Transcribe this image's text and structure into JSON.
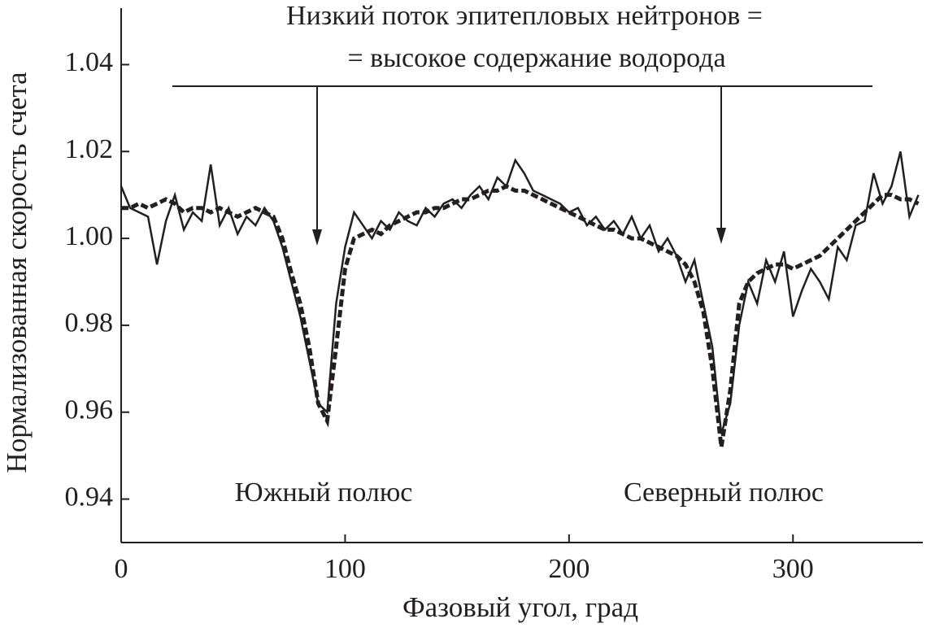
{
  "chart_data": {
    "type": "line",
    "xlabel": "Фазовый угол, град",
    "ylabel": "Нормализованная скорость счета",
    "annotations": [
      "Низкий поток эпитепловых нейтронов =",
      "= высокое содержание водорода",
      "Южный полюс",
      "Северный полюс"
    ],
    "x": [
      0,
      4,
      8,
      12,
      16,
      20,
      24,
      28,
      32,
      36,
      40,
      44,
      48,
      52,
      56,
      60,
      64,
      68,
      72,
      76,
      80,
      84,
      88,
      92,
      96,
      100,
      104,
      108,
      112,
      116,
      120,
      124,
      128,
      132,
      136,
      140,
      144,
      148,
      152,
      156,
      160,
      164,
      168,
      172,
      176,
      180,
      184,
      188,
      192,
      196,
      200,
      204,
      208,
      212,
      216,
      220,
      224,
      228,
      232,
      236,
      240,
      244,
      248,
      252,
      256,
      260,
      264,
      268,
      272,
      276,
      280,
      284,
      288,
      292,
      296,
      300,
      304,
      308,
      312,
      316,
      320,
      324,
      328,
      332,
      336,
      340,
      344,
      348,
      352,
      356
    ],
    "series": [
      {
        "color": "#231f20",
        "dash": false,
        "values": [
          1.012,
          1.007,
          1.006,
          1.005,
          0.994,
          1.004,
          1.01,
          1.002,
          1.006,
          1.004,
          1.017,
          1.003,
          1.007,
          1.001,
          1.005,
          1.003,
          1.007,
          1.004,
          0.998,
          0.99,
          0.982,
          0.972,
          0.962,
          0.96,
          0.985,
          0.998,
          1.006,
          1.003,
          1.0,
          1.004,
          1.002,
          1.006,
          1.004,
          1.003,
          1.007,
          1.005,
          1.008,
          1.009,
          1.007,
          1.01,
          1.012,
          1.009,
          1.014,
          1.012,
          1.018,
          1.015,
          1.011,
          1.01,
          1.009,
          1.008,
          1.006,
          1.007,
          1.003,
          1.005,
          1.002,
          1.004,
          1.001,
          1.005,
          1.0,
          1.003,
          0.997,
          1.0,
          0.996,
          0.99,
          0.995,
          0.985,
          0.975,
          0.955,
          0.962,
          0.98,
          0.99,
          0.985,
          0.995,
          0.99,
          0.997,
          0.982,
          0.988,
          0.993,
          0.99,
          0.986,
          0.998,
          0.995,
          1.003,
          1.004,
          1.015,
          1.008,
          1.012,
          1.02,
          1.005,
          1.01
        ]
      },
      {
        "color": "#231f20",
        "dash": true,
        "values": [
          1.007,
          1.007,
          1.008,
          1.007,
          1.008,
          1.009,
          1.008,
          1.006,
          1.007,
          1.007,
          1.006,
          1.007,
          1.006,
          1.005,
          1.006,
          1.007,
          1.006,
          1.005,
          1.0,
          0.992,
          0.985,
          0.975,
          0.962,
          0.958,
          0.975,
          0.993,
          1.0,
          1.001,
          1.002,
          1.001,
          1.003,
          1.004,
          1.005,
          1.006,
          1.006,
          1.007,
          1.007,
          1.008,
          1.009,
          1.009,
          1.01,
          1.011,
          1.011,
          1.012,
          1.011,
          1.011,
          1.01,
          1.009,
          1.008,
          1.007,
          1.006,
          1.005,
          1.004,
          1.003,
          1.002,
          1.002,
          1.001,
          1.0,
          1.0,
          0.999,
          0.998,
          0.997,
          0.996,
          0.994,
          0.99,
          0.983,
          0.97,
          0.952,
          0.965,
          0.985,
          0.99,
          0.992,
          0.993,
          0.994,
          0.994,
          0.993,
          0.994,
          0.995,
          0.996,
          0.998,
          1.0,
          1.002,
          1.004,
          1.006,
          1.008,
          1.01,
          1.01,
          1.009,
          1.009,
          1.008
        ]
      }
    ],
    "xlim": [
      0,
      358
    ],
    "ylim": [
      0.93,
      1.053
    ],
    "xticks": [
      0,
      100,
      200,
      300
    ],
    "yticks": [
      0.94,
      0.96,
      0.98,
      {
        "value": 1,
        "label": "1.00"
      },
      1.02,
      1.04
    ]
  }
}
